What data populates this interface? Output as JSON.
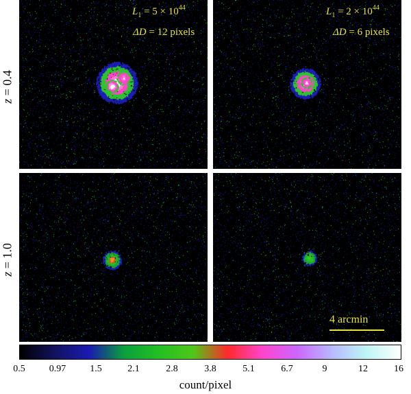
{
  "panels": [
    {
      "id": "z04-L5",
      "row": "z = 0.4",
      "col": 1,
      "annotation": {
        "L_symbol": "L",
        "L_sub": "1",
        "L_value": "= 5 × 10",
        "L_exp": "44",
        "D_symbol": "ΔD",
        "D_value": "= 12 pixels"
      }
    },
    {
      "id": "z04-L2",
      "row": "z = 0.4",
      "col": 2,
      "annotation": {
        "L_symbol": "L",
        "L_sub": "1",
        "L_value": "= 2 × 10",
        "L_exp": "44",
        "D_symbol": "ΔD",
        "D_value": "= 6 pixels"
      }
    },
    {
      "id": "z10-L5",
      "row": "z = 1.0",
      "col": 1
    },
    {
      "id": "z10-L2",
      "row": "z = 1.0",
      "col": 2
    }
  ],
  "row_labels": [
    {
      "var": "z",
      "value": "= 0.4"
    },
    {
      "var": "z",
      "value": "= 1.0"
    }
  ],
  "scale_bar": {
    "label": "4 arcmin"
  },
  "colorbar": {
    "ticks": [
      "0.5",
      "0.97",
      "1.5",
      "2.1",
      "2.8",
      "3.8",
      "5.1",
      "6.7",
      "9",
      "12",
      "16"
    ],
    "label": "count/pixel",
    "colors": [
      "#000000",
      "#12125e",
      "#1a1ab0",
      "#0aa03c",
      "#22c022",
      "#4ec818",
      "#ff2a2a",
      "#ff44cc",
      "#cc66ff",
      "#b8b8ff",
      "#bdf5f5",
      "#ffffff"
    ]
  }
}
